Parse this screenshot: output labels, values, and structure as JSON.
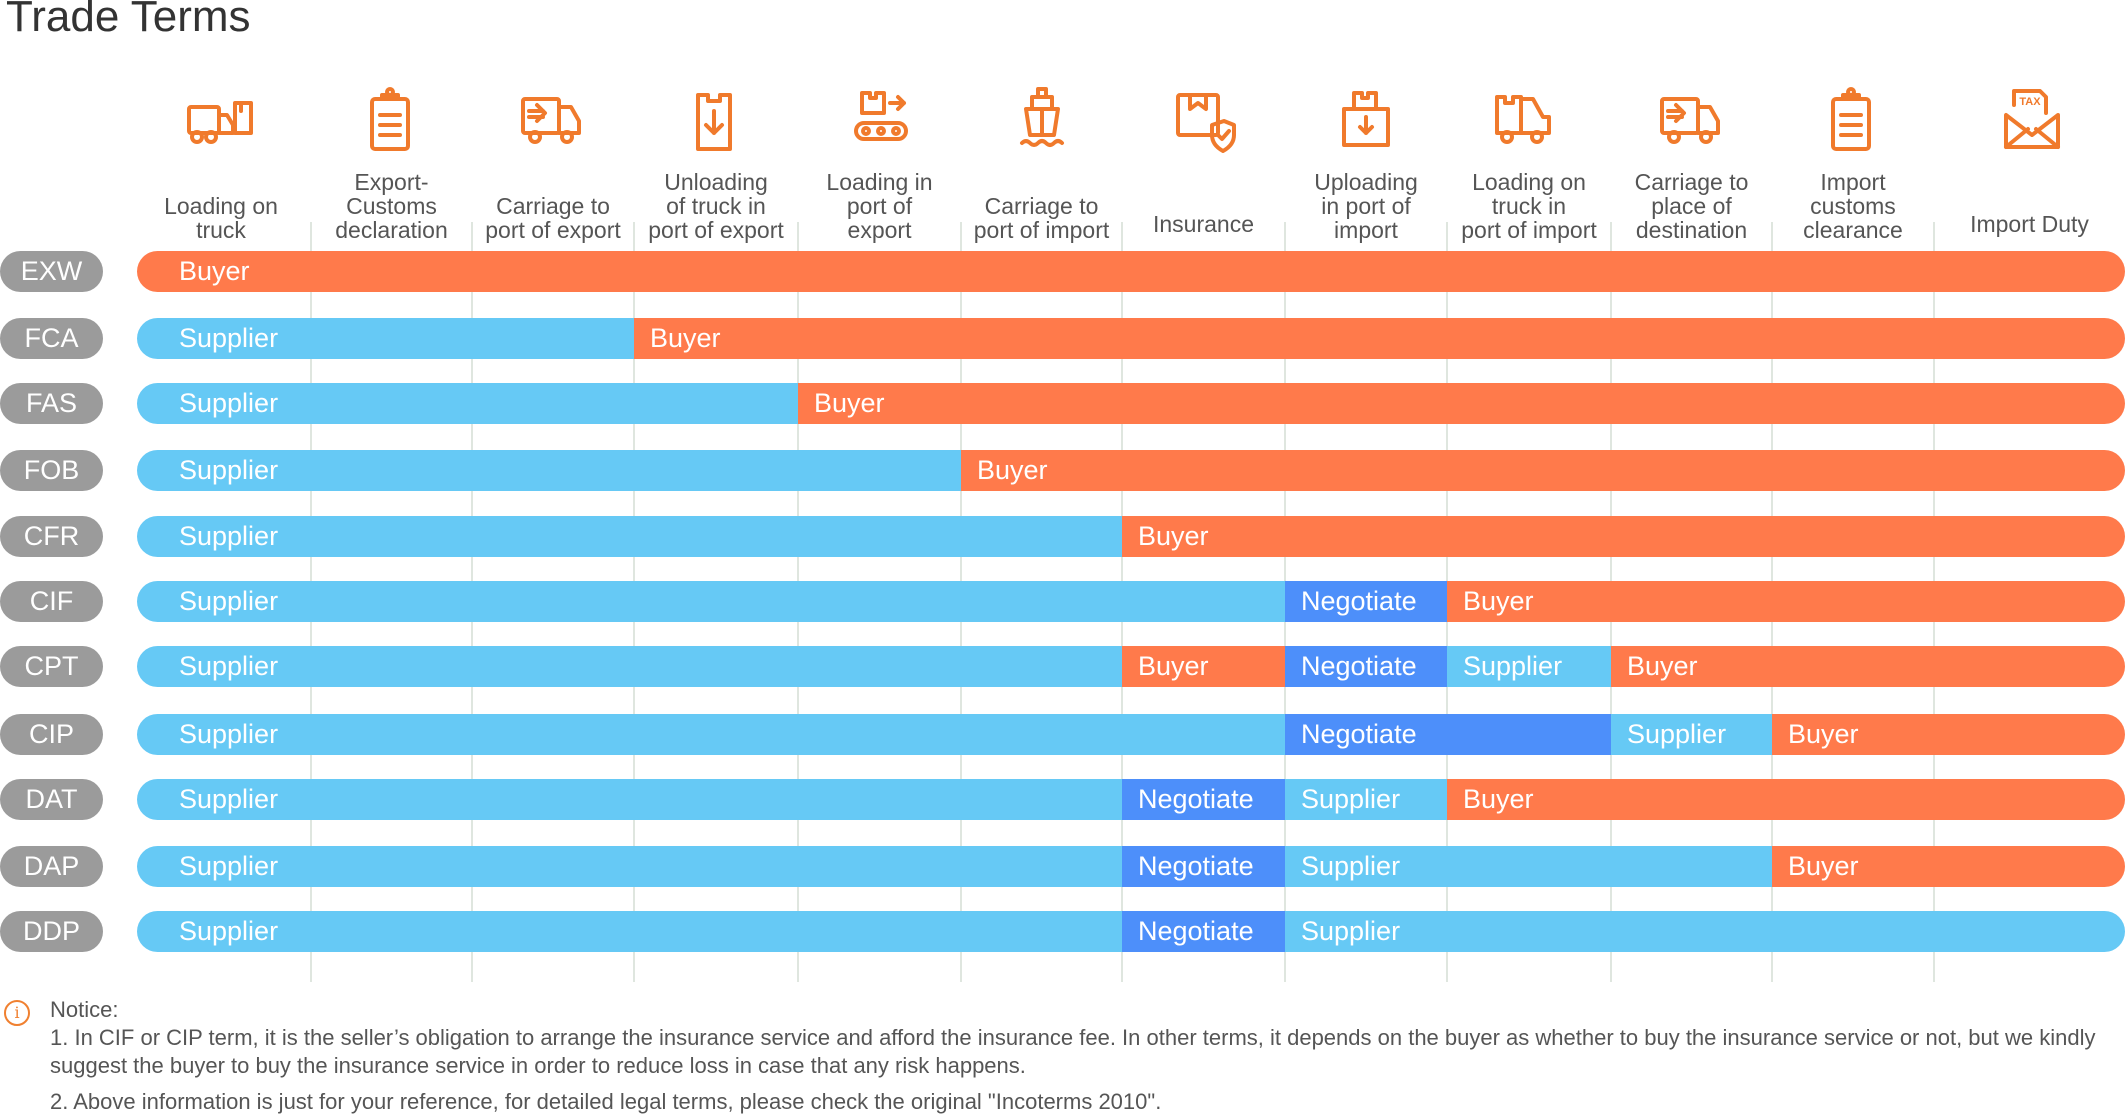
{
  "title": "Trade Terms",
  "colors": {
    "supplier": "#66c9f5",
    "buyer": "#ff7a4b",
    "negotiate": "#4d8ffa",
    "term_pill": "#9b9b9b",
    "icon": "#f07a2c"
  },
  "columns": [
    {
      "label": "Loading on\ntruck",
      "icon": "truck-loading-icon"
    },
    {
      "label": "Export-\nCustoms\ndeclaration",
      "icon": "clipboard-icon"
    },
    {
      "label": "Carriage to\nport of export",
      "icon": "delivery-truck-icon"
    },
    {
      "label": "Unloading\nof truck in\nport of export",
      "icon": "box-unload-icon"
    },
    {
      "label": "Loading in\nport of\nexport",
      "icon": "conveyor-icon"
    },
    {
      "label": "Carriage to\nport of import",
      "icon": "ship-icon"
    },
    {
      "label": "Insurance",
      "icon": "box-shield-icon"
    },
    {
      "label": "Uploading\nin port of\nimport",
      "icon": "box-download-icon"
    },
    {
      "label": "Loading on\ntruck in\nport of import",
      "icon": "truck-box-icon"
    },
    {
      "label": "Carriage to\nplace of\ndestination",
      "icon": "delivery-truck-icon"
    },
    {
      "label": "Import\ncustoms\nclearance",
      "icon": "clipboard-icon"
    },
    {
      "label": "Import Duty",
      "icon": "tax-envelope-icon"
    }
  ],
  "terms": [
    {
      "code": "EXW",
      "segments": [
        {
          "party": "Buyer",
          "from": 0,
          "to": 12
        }
      ]
    },
    {
      "code": "FCA",
      "segments": [
        {
          "party": "Supplier",
          "from": 0,
          "to": 3
        },
        {
          "party": "Buyer",
          "from": 3,
          "to": 12
        }
      ]
    },
    {
      "code": "FAS",
      "segments": [
        {
          "party": "Supplier",
          "from": 0,
          "to": 4
        },
        {
          "party": "Buyer",
          "from": 4,
          "to": 12
        }
      ]
    },
    {
      "code": "FOB",
      "segments": [
        {
          "party": "Supplier",
          "from": 0,
          "to": 5
        },
        {
          "party": "Buyer",
          "from": 5,
          "to": 12
        }
      ]
    },
    {
      "code": "CFR",
      "segments": [
        {
          "party": "Supplier",
          "from": 0,
          "to": 6
        },
        {
          "party": "Buyer",
          "from": 6,
          "to": 12
        }
      ]
    },
    {
      "code": "CIF",
      "segments": [
        {
          "party": "Supplier",
          "from": 0,
          "to": 7
        },
        {
          "party": "Negotiate",
          "from": 7,
          "to": 8
        },
        {
          "party": "Buyer",
          "from": 8,
          "to": 12
        }
      ]
    },
    {
      "code": "CPT",
      "segments": [
        {
          "party": "Supplier",
          "from": 0,
          "to": 6
        },
        {
          "party": "Buyer",
          "from": 6,
          "to": 7
        },
        {
          "party": "Negotiate",
          "from": 7,
          "to": 8
        },
        {
          "party": "Supplier",
          "from": 8,
          "to": 9
        },
        {
          "party": "Buyer",
          "from": 9,
          "to": 12
        }
      ]
    },
    {
      "code": "CIP",
      "segments": [
        {
          "party": "Supplier",
          "from": 0,
          "to": 7
        },
        {
          "party": "Negotiate",
          "from": 7,
          "to": 9
        },
        {
          "party": "Supplier",
          "from": 9,
          "to": 10
        },
        {
          "party": "Buyer",
          "from": 10,
          "to": 12
        }
      ]
    },
    {
      "code": "DAT",
      "segments": [
        {
          "party": "Supplier",
          "from": 0,
          "to": 6
        },
        {
          "party": "Negotiate",
          "from": 6,
          "to": 7
        },
        {
          "party": "Supplier",
          "from": 7,
          "to": 8
        },
        {
          "party": "Buyer",
          "from": 8,
          "to": 12
        }
      ]
    },
    {
      "code": "DAP",
      "segments": [
        {
          "party": "Supplier",
          "from": 0,
          "to": 6
        },
        {
          "party": "Negotiate",
          "from": 6,
          "to": 7
        },
        {
          "party": "Supplier",
          "from": 7,
          "to": 10
        },
        {
          "party": "Buyer",
          "from": 10,
          "to": 12
        }
      ]
    },
    {
      "code": "DDP",
      "segments": [
        {
          "party": "Supplier",
          "from": 0,
          "to": 6
        },
        {
          "party": "Negotiate",
          "from": 6,
          "to": 7
        },
        {
          "party": "Supplier",
          "from": 7,
          "to": 12
        }
      ]
    }
  ],
  "notice": {
    "icon": "info-icon",
    "heading": "Notice:",
    "items": [
      "1. In CIF or CIP term, it is the seller’s obligation to arrange the insurance service and afford the insurance fee. In other terms, it depends on the buyer as whether to buy the insurance service or not, but we kindly suggest the buyer to buy the insurance service in order to reduce loss in case that any risk happens.",
      "2. Above information is just for your reference, for detailed legal terms, please check the original \"Incoterms 2010\"."
    ]
  }
}
